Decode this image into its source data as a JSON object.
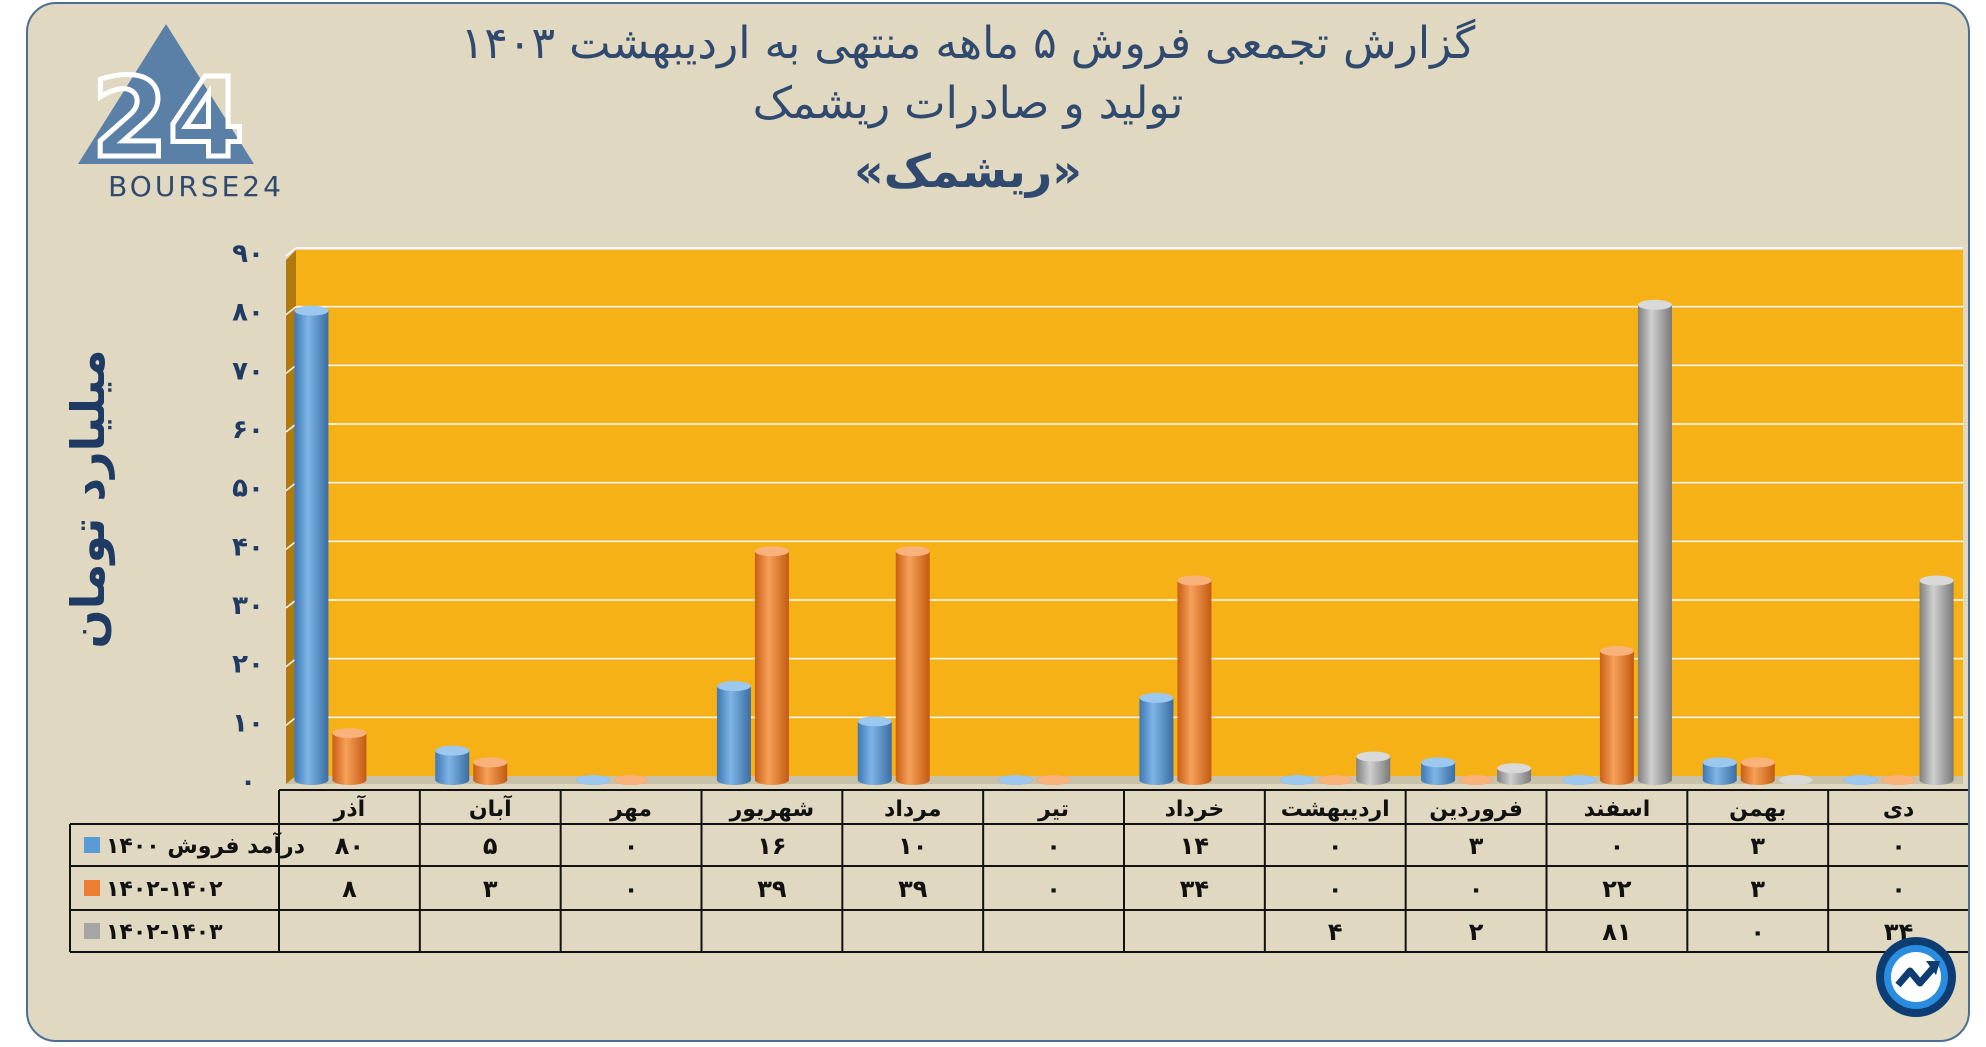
{
  "title": {
    "line1": "گزارش تجمعی فروش ۵ ماهه منتهی به اردیبهشت ۱۴۰۳",
    "line2": "تولید و صادرات ریشمک",
    "line3": "«ریشمک»"
  },
  "brand": {
    "logo_number": "24",
    "logo_text": "BOURSE24",
    "badge_icon": "trend-arrow-icon"
  },
  "colors": {
    "series_1400": "#5b9bd5",
    "series_1401": "#ed7d31",
    "series_1402": "#a5a5a5",
    "plot_background": "#f6b117",
    "frame_background": "#e0d8c1",
    "title_text": "#2f4a6e"
  },
  "chart_data": {
    "type": "bar",
    "ylabel": "میلیارد تومان",
    "ylim": [
      0,
      90
    ],
    "yticks": [
      {
        "value": 0,
        "label": "۰"
      },
      {
        "value": 10,
        "label": "۱۰"
      },
      {
        "value": 20,
        "label": "۲۰"
      },
      {
        "value": 30,
        "label": "۳۰"
      },
      {
        "value": 40,
        "label": "۴۰"
      },
      {
        "value": 50,
        "label": "۵۰"
      },
      {
        "value": 60,
        "label": "۶۰"
      },
      {
        "value": 70,
        "label": "۷۰"
      },
      {
        "value": 80,
        "label": "۸۰"
      },
      {
        "value": 90,
        "label": "۹۰"
      }
    ],
    "grid": true,
    "legend": "data-table-left",
    "categories": [
      "آذر",
      "آبان",
      "مهر",
      "شهریور",
      "مرداد",
      "تیر",
      "خرداد",
      "اردیبهشت",
      "فروردین",
      "اسفند",
      "بهمن",
      "دی"
    ],
    "series": [
      {
        "name": "درآمد فروش ۱۴۰۰",
        "values": [
          80,
          5,
          0,
          16,
          10,
          0,
          14,
          0,
          3,
          0,
          3,
          0
        ],
        "labels": [
          "۸۰",
          "۵",
          "۰",
          "۱۶",
          "۱۰",
          "۰",
          "۱۴",
          "۰",
          "۳",
          "۰",
          "۳",
          "۰"
        ]
      },
      {
        "name": "۱۴۰۲-۱۴۰۲",
        "values": [
          8,
          3,
          0,
          39,
          39,
          0,
          34,
          0,
          0,
          22,
          3,
          0
        ],
        "labels": [
          "۸",
          "۳",
          "۰",
          "۳۹",
          "۳۹",
          "۰",
          "۳۴",
          "۰",
          "۰",
          "۲۲",
          "۳",
          "۰"
        ]
      },
      {
        "name": "۱۴۰۲-۱۴۰۳",
        "values": [
          null,
          null,
          null,
          null,
          null,
          null,
          null,
          4,
          2,
          81,
          0,
          34
        ],
        "labels": [
          "",
          "",
          "",
          "",
          "",
          "",
          "",
          "۴",
          "۲",
          "۸۱",
          "۰",
          "۳۴"
        ]
      }
    ]
  }
}
